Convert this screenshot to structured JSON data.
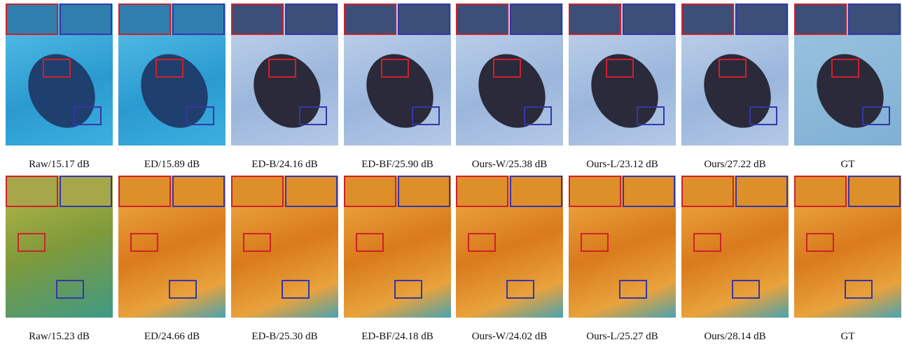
{
  "figure": {
    "rows": [
      {
        "captions": [
          "Raw/15.17 dB",
          "ED/15.89 dB",
          "ED-B/24.16 dB",
          "ED-BF/25.90 dB",
          "Ours-W/25.38 dB",
          "Ours-L/23.12 dB",
          "Ours/27.22 dB",
          "GT"
        ]
      },
      {
        "captions": [
          "Raw/15.23 dB",
          "ED/24.66 dB",
          "ED-B/25.30 dB",
          "ED-BF/24.18 dB",
          "Ours-W/24.02 dB",
          "Ours-L/25.27 dB",
          "Ours/28.14 dB",
          "GT"
        ]
      }
    ]
  }
}
